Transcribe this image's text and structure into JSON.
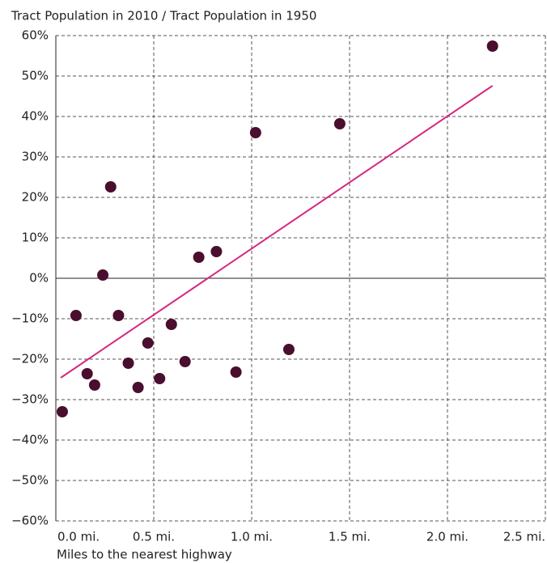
{
  "chart_data": {
    "type": "scatter",
    "title": "Tract Population in 2010 / Tract Population in 1950",
    "x_label": "Miles to the nearest highway",
    "color": "#4a0e2e",
    "x": [
      0.033,
      0.103,
      0.16,
      0.198,
      0.24,
      0.28,
      0.32,
      0.37,
      0.42,
      0.47,
      0.53,
      0.59,
      0.66,
      0.73,
      0.82,
      0.92,
      1.02,
      1.19,
      1.45,
      2.23
    ],
    "values": [
      -33,
      -9.2,
      -23.6,
      -26.4,
      0.8,
      22.6,
      -9.2,
      -21,
      -27,
      -16,
      -24.8,
      -11.4,
      -20.6,
      5.2,
      6.6,
      -23.2,
      36,
      -17.6,
      38.2,
      57.4
    ],
    "trendline": {
      "color": "#d6267e",
      "x": [
        0.025,
        2.23
      ],
      "values": [
        -24.6,
        47.6
      ]
    },
    "xlim": [
      0,
      2.5
    ],
    "xticks": [
      {
        "value": 0,
        "label": "0.0 mi."
      },
      {
        "value": 0.5,
        "label": "0.5 mi."
      },
      {
        "value": 1,
        "label": "1.0 mi."
      },
      {
        "value": 1.5,
        "label": "1.5 mi."
      },
      {
        "value": 2,
        "label": "2.0 mi."
      },
      {
        "value": 2.5,
        "label": "2.5 mi."
      }
    ],
    "ylim": [
      -60,
      60
    ],
    "yticks": [
      {
        "value": -60,
        "label": "−60%"
      },
      {
        "value": -50,
        "label": "−50%"
      },
      {
        "value": -40,
        "label": "−40%"
      },
      {
        "value": -30,
        "label": "−30%"
      },
      {
        "value": -20,
        "label": "−20%"
      },
      {
        "value": -10,
        "label": "−10%"
      },
      {
        "value": 0,
        "label": "0%"
      },
      {
        "value": 10,
        "label": "10%"
      },
      {
        "value": 20,
        "label": "20%"
      },
      {
        "value": 30,
        "label": "30%"
      },
      {
        "value": 40,
        "label": "40%"
      },
      {
        "value": 50,
        "label": "50%"
      },
      {
        "value": 60,
        "label": "60%"
      }
    ],
    "grid": true
  }
}
